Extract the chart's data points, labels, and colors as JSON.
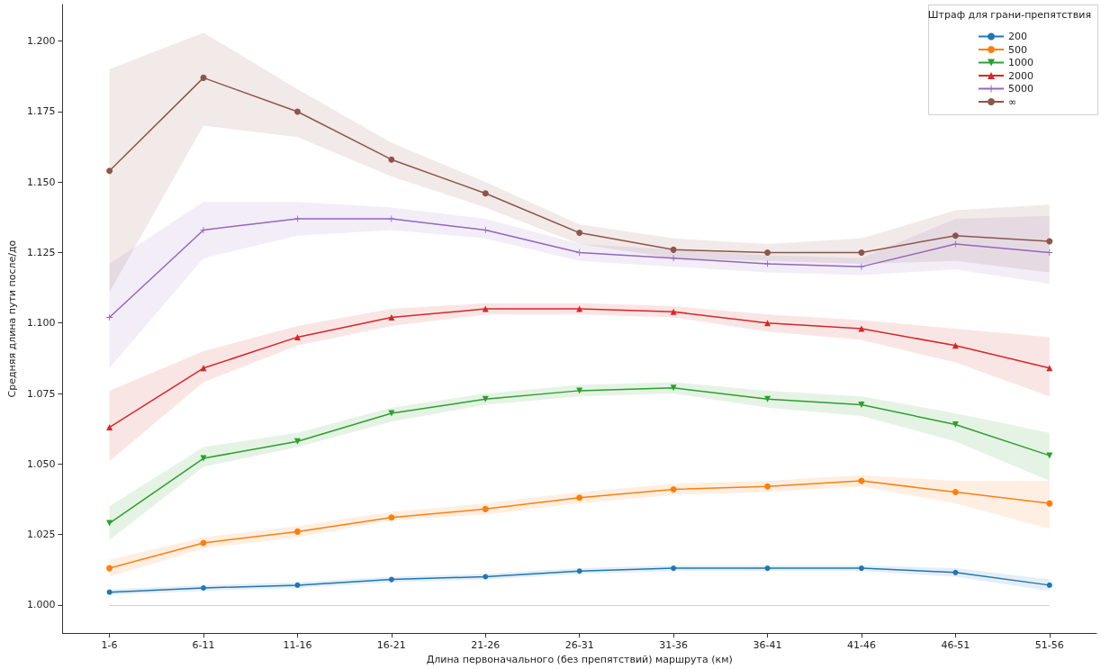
{
  "chart_data": {
    "type": "line",
    "xlabel": "Длина первоначального (без препятствий) маршрута (км)",
    "ylabel": "Средняя длина пути после/до",
    "legend_title": "Штраф для грани-препятствия",
    "legend": "top right",
    "grid": false,
    "categories": [
      "1-6",
      "6-11",
      "11-16",
      "16-21",
      "21-26",
      "26-31",
      "31-36",
      "36-41",
      "41-46",
      "46-51",
      "51-56"
    ],
    "ylim": [
      0.99,
      1.213
    ],
    "yticks": [
      {
        "value": 1,
        "label": "1.000"
      },
      {
        "value": 1.025,
        "label": "1.025"
      },
      {
        "value": 1.05,
        "label": "1.050"
      },
      {
        "value": 1.075,
        "label": "1.075"
      },
      {
        "value": 1.1,
        "label": "1.100"
      },
      {
        "value": 1.125,
        "label": "1.125"
      },
      {
        "value": 1.15,
        "label": "1.150"
      },
      {
        "value": 1.175,
        "label": "1.175"
      },
      {
        "value": 1.2,
        "label": "1.200"
      }
    ],
    "ref_lines": [
      {
        "axis": "y",
        "value": 1,
        "label": null,
        "color": "#d0d0d0"
      }
    ],
    "series": [
      {
        "name": "200",
        "color": "#1f77b4",
        "marker": "circle",
        "values": [
          1.0045,
          1.006,
          1.007,
          1.009,
          1.01,
          1.012,
          1.013,
          1.013,
          1.013,
          1.0115,
          1.007
        ],
        "lower": [
          1.0035,
          1.005,
          1.006,
          1.008,
          1.009,
          1.011,
          1.012,
          1.012,
          1.012,
          1.01,
          1.005
        ],
        "upper": [
          1.0055,
          1.007,
          1.008,
          1.01,
          1.011,
          1.013,
          1.014,
          1.014,
          1.014,
          1.013,
          1.009
        ]
      },
      {
        "name": "500",
        "color": "#ff7f0e",
        "marker": "circle",
        "values": [
          1.013,
          1.022,
          1.026,
          1.031,
          1.034,
          1.038,
          1.041,
          1.042,
          1.044,
          1.04,
          1.036
        ],
        "lower": [
          1.01,
          1.02,
          1.024,
          1.03,
          1.032,
          1.036,
          1.039,
          1.04,
          1.042,
          1.036,
          1.027
        ],
        "upper": [
          1.016,
          1.024,
          1.028,
          1.033,
          1.036,
          1.04,
          1.043,
          1.044,
          1.046,
          1.044,
          1.044
        ]
      },
      {
        "name": "1000",
        "color": "#2ca02c",
        "marker": "triangle-down",
        "values": [
          1.029,
          1.052,
          1.058,
          1.068,
          1.073,
          1.076,
          1.077,
          1.073,
          1.071,
          1.064,
          1.053
        ],
        "lower": [
          1.023,
          1.049,
          1.056,
          1.065,
          1.071,
          1.074,
          1.075,
          1.07,
          1.067,
          1.058,
          1.044
        ],
        "upper": [
          1.035,
          1.056,
          1.061,
          1.07,
          1.075,
          1.078,
          1.079,
          1.076,
          1.074,
          1.068,
          1.061
        ]
      },
      {
        "name": "2000",
        "color": "#d62728",
        "marker": "triangle",
        "values": [
          1.063,
          1.084,
          1.095,
          1.102,
          1.105,
          1.105,
          1.104,
          1.1,
          1.098,
          1.092,
          1.084
        ],
        "lower": [
          1.051,
          1.079,
          1.092,
          1.099,
          1.103,
          1.103,
          1.102,
          1.097,
          1.094,
          1.086,
          1.074
        ],
        "upper": [
          1.076,
          1.09,
          1.099,
          1.105,
          1.107,
          1.107,
          1.106,
          1.103,
          1.101,
          1.098,
          1.095
        ]
      },
      {
        "name": "5000",
        "color": "#9467bd",
        "marker": "cross",
        "values": [
          1.102,
          1.133,
          1.137,
          1.137,
          1.133,
          1.125,
          1.123,
          1.121,
          1.12,
          1.128,
          1.125
        ],
        "lower": [
          1.084,
          1.123,
          1.131,
          1.133,
          1.13,
          1.122,
          1.12,
          1.118,
          1.117,
          1.119,
          1.114
        ],
        "upper": [
          1.121,
          1.143,
          1.143,
          1.141,
          1.137,
          1.128,
          1.126,
          1.124,
          1.123,
          1.137,
          1.138
        ]
      },
      {
        "name": "∞",
        "color": "#8c564b",
        "marker": "circle",
        "values": [
          1.154,
          1.187,
          1.175,
          1.158,
          1.146,
          1.132,
          1.126,
          1.125,
          1.125,
          1.131,
          1.129
        ],
        "lower": [
          1.111,
          1.17,
          1.166,
          1.152,
          1.141,
          1.128,
          1.123,
          1.122,
          1.121,
          1.122,
          1.118
        ],
        "upper": [
          1.19,
          1.203,
          1.183,
          1.164,
          1.15,
          1.135,
          1.13,
          1.128,
          1.13,
          1.14,
          1.142
        ]
      }
    ]
  }
}
